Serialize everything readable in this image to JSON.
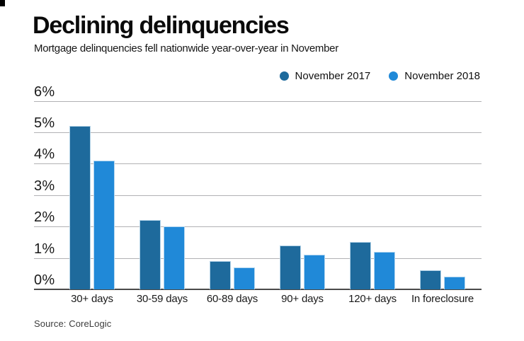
{
  "header": {
    "title": "Declining delinquencies",
    "subtitle": "Mortgage delinquencies fell nationwide year-over-year in November"
  },
  "legend": [
    {
      "label": "November 2017",
      "color": "#1e6a9c"
    },
    {
      "label": "November 2018",
      "color": "#2089d8"
    }
  ],
  "chart_data": {
    "type": "bar",
    "categories": [
      "30+ days",
      "30-59 days",
      "60-89 days",
      "90+ days",
      "120+ days",
      "In foreclosure"
    ],
    "series": [
      {
        "name": "November 2017",
        "color": "#1e6a9c",
        "values": [
          5.2,
          2.2,
          0.9,
          1.4,
          1.5,
          0.6
        ]
      },
      {
        "name": "November 2018",
        "color": "#2089d8",
        "values": [
          4.1,
          2.0,
          0.7,
          1.1,
          1.2,
          0.4
        ]
      }
    ],
    "title": "Declining delinquencies",
    "xlabel": "",
    "ylabel": "",
    "y_tick_labels": [
      "6%",
      "5%",
      "4%",
      "3%",
      "2%",
      "1%",
      "0%"
    ],
    "ylim": [
      0,
      6
    ],
    "y_tick_step": 1,
    "unit": "percent",
    "grid": true,
    "legend_position": "top-right",
    "colors": {
      "gridline": "#b1b1b4",
      "baseline": "#4a4a4a"
    }
  },
  "source": "Source: CoreLogic"
}
